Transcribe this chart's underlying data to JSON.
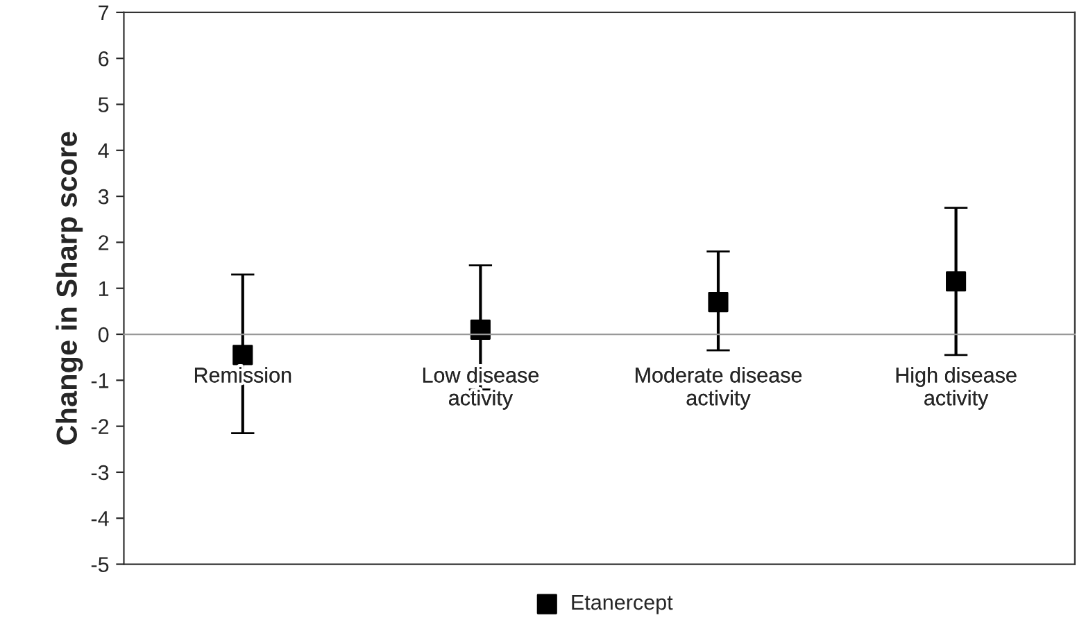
{
  "chart_data": {
    "type": "scatter",
    "ylabel": "Change in Sharp score",
    "categories": [
      "Remission",
      "Low disease\nactivity",
      "Moderate disease\nactivity",
      "High disease\nactivity"
    ],
    "series": [
      {
        "name": "Etanercept",
        "color": "#000000",
        "values": [
          -0.45,
          0.1,
          0.7,
          1.15
        ],
        "errors": [
          [
            -2.15,
            1.3
          ],
          [
            -1.2,
            1.5
          ],
          [
            -0.35,
            1.8
          ],
          [
            -0.45,
            2.75
          ]
        ]
      }
    ],
    "ylim": [
      -5,
      7
    ],
    "yticks": [
      -5,
      -4,
      -3,
      -2,
      -1,
      0,
      1,
      2,
      3,
      4,
      5,
      6,
      7
    ],
    "marker": "square",
    "legend": "bottom",
    "grid": false
  }
}
